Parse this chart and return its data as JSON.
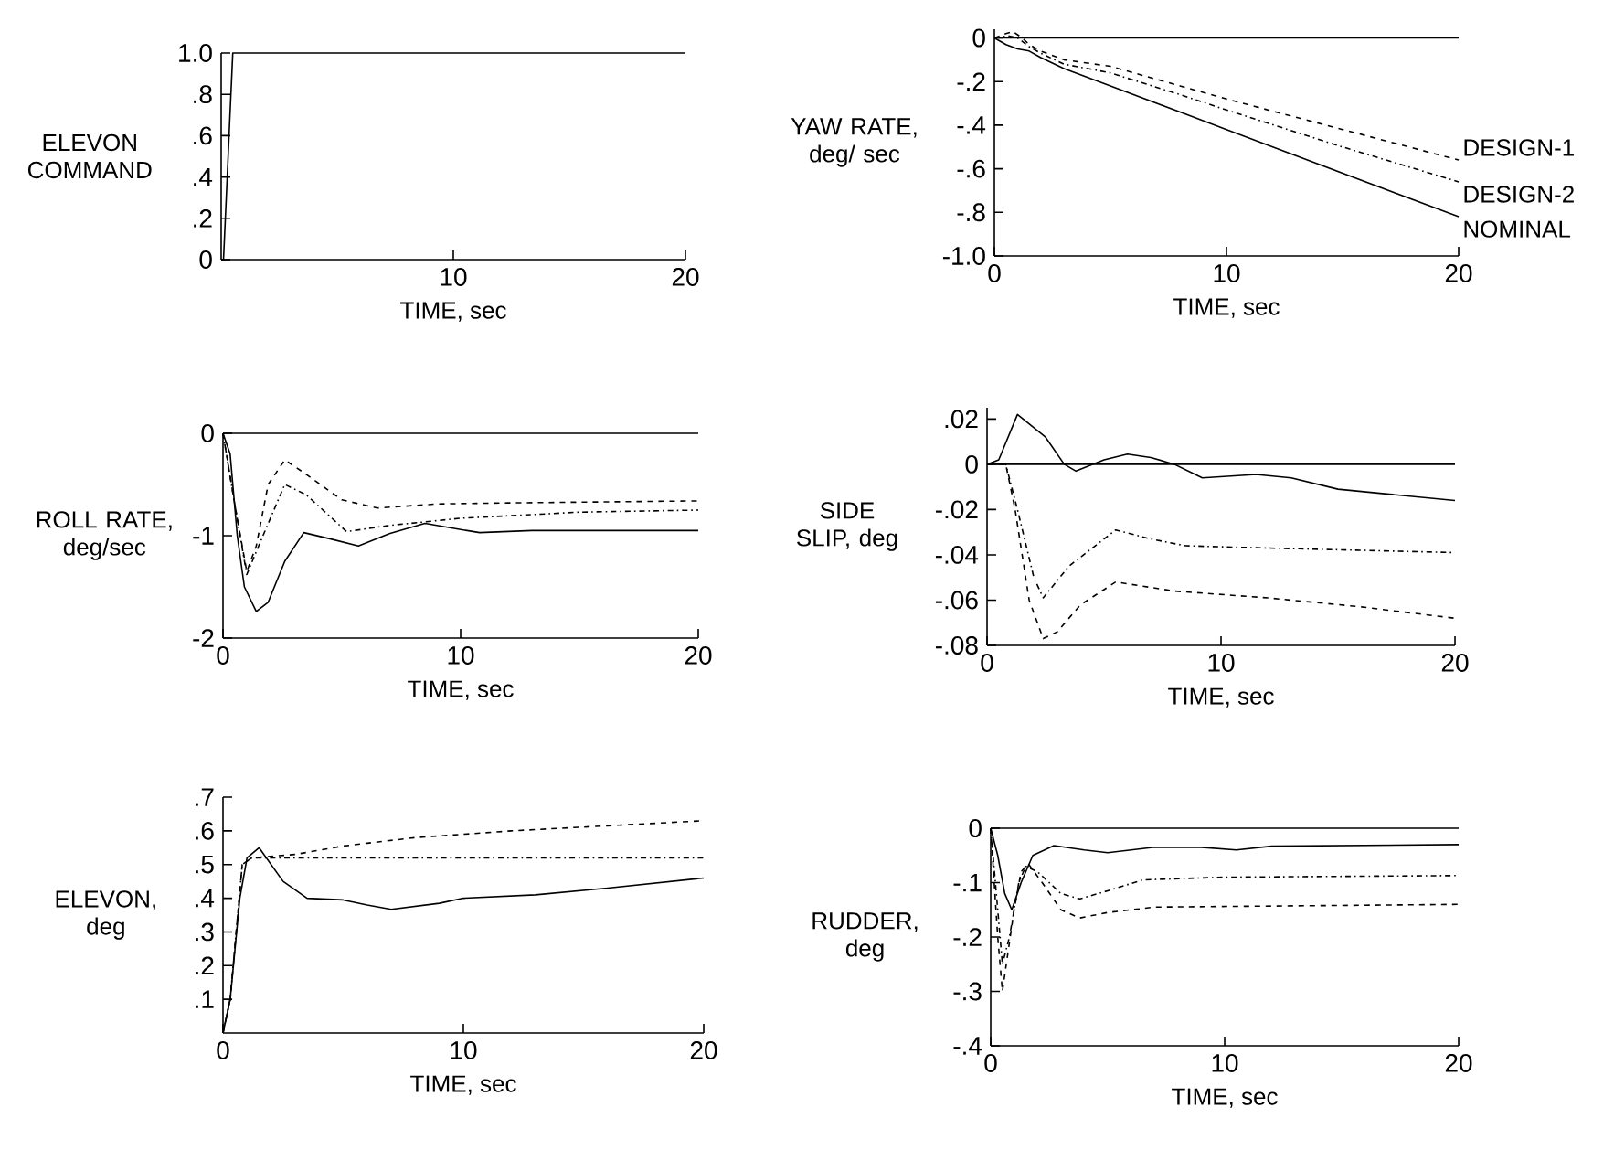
{
  "chart_data": [
    {
      "type": "line",
      "xlabel": "TIME, sec",
      "ylabel": "ELEVON COMMAND",
      "xlim": [
        0,
        20
      ],
      "ylim": [
        0,
        1
      ],
      "xticks": [
        10,
        20
      ],
      "yticks": [
        0,
        {
          "value": 0.2,
          "label": ".2"
        },
        {
          "value": 0.4,
          "label": ".4"
        },
        {
          "value": 0.6,
          "label": ".6"
        },
        {
          "value": 0.8,
          "label": ".8"
        },
        {
          "value": 1,
          "label": "1.0"
        }
      ],
      "series": [
        {
          "color": "#000000",
          "line_style": "solid",
          "x": [
            0,
            0.1,
            0.5,
            20
          ],
          "values": [
            0,
            0,
            1,
            1
          ]
        }
      ]
    },
    {
      "type": "line",
      "xlabel": "TIME, sec",
      "ylabel": "YAW RATE, deg/ sec",
      "xlim": [
        0,
        20
      ],
      "ylim": [
        -1,
        0.04
      ],
      "xticks": [
        0,
        10,
        20
      ],
      "yticks": [
        0,
        {
          "value": -0.2,
          "label": "-.2"
        },
        {
          "value": -0.4,
          "label": "-.4"
        },
        {
          "value": -0.6,
          "label": "-.6"
        },
        {
          "value": -0.8,
          "label": "-.8"
        },
        {
          "value": -1,
          "label": "-1.0"
        }
      ],
      "ref_lines": [
        {
          "axis": "y",
          "value": 0
        }
      ],
      "series": [
        {
          "name": "NOMINAL",
          "color": "#000000",
          "line_style": "solid",
          "x": [
            0,
            0.5,
            1,
            1.5,
            2,
            3,
            5,
            8,
            10,
            15,
            20
          ],
          "values": [
            0,
            -0.03,
            -0.05,
            -0.06,
            -0.09,
            -0.14,
            -0.22,
            -0.34,
            -0.42,
            -0.62,
            -0.82
          ]
        },
        {
          "name": "DESIGN-1",
          "color": "#000000",
          "line_style": "dashed",
          "x": [
            0,
            0.5,
            0.8,
            1.2,
            1.5,
            2,
            3,
            5,
            8,
            10,
            15,
            20
          ],
          "values": [
            0,
            0.02,
            0.03,
            0,
            -0.03,
            -0.06,
            -0.1,
            -0.13,
            -0.22,
            -0.28,
            -0.42,
            -0.56
          ]
        },
        {
          "name": "DESIGN-2",
          "color": "#000000",
          "line_style": "dashdot",
          "x": [
            0,
            0.6,
            1,
            1.5,
            2,
            3,
            5,
            8,
            10,
            15,
            20
          ],
          "values": [
            0,
            0.01,
            0,
            -0.04,
            -0.07,
            -0.12,
            -0.16,
            -0.26,
            -0.33,
            -0.5,
            -0.66
          ]
        }
      ]
    },
    {
      "type": "line",
      "xlabel": "TIME, sec",
      "ylabel": "ROLL RATE, deg/sec",
      "xlim": [
        0,
        20
      ],
      "ylim": [
        -2,
        0
      ],
      "xticks": [
        0,
        10,
        20
      ],
      "yticks": [
        0,
        -1,
        -2
      ],
      "ref_lines": [
        {
          "axis": "y",
          "value": 0
        }
      ],
      "series": [
        {
          "color": "#000000",
          "line_style": "solid",
          "x": [
            0,
            0.3,
            0.6,
            0.9,
            1.4,
            1.9,
            2.6,
            3.4,
            4.5,
            5.7,
            7,
            8.5,
            10,
            10.8,
            13,
            20
          ],
          "values": [
            0,
            -0.2,
            -1.0,
            -1.5,
            -1.74,
            -1.65,
            -1.25,
            -0.97,
            -1.03,
            -1.1,
            -0.98,
            -0.88,
            -0.94,
            -0.97,
            -0.95,
            -0.95
          ]
        },
        {
          "color": "#000000",
          "line_style": "dashed",
          "x": [
            0,
            0.5,
            1,
            1.4,
            1.9,
            2.6,
            3.5,
            5,
            6.5,
            9,
            12,
            20
          ],
          "values": [
            0,
            -0.7,
            -1.35,
            -1.1,
            -0.5,
            -0.26,
            -0.4,
            -0.65,
            -0.73,
            -0.69,
            -0.68,
            -0.66
          ]
        },
        {
          "color": "#000000",
          "line_style": "dashdot",
          "x": [
            0,
            0.5,
            1,
            1.5,
            2.6,
            3.5,
            5.2,
            7,
            10,
            15,
            20
          ],
          "values": [
            0,
            -0.7,
            -1.38,
            -1.1,
            -0.5,
            -0.6,
            -0.96,
            -0.9,
            -0.83,
            -0.77,
            -0.75
          ]
        }
      ]
    },
    {
      "type": "line",
      "xlabel": "TIME, sec",
      "ylabel": "SIDE SLIP, deg",
      "xlim": [
        0,
        20
      ],
      "ylim": [
        -0.08,
        0.025
      ],
      "xticks": [
        0,
        10,
        20
      ],
      "yticks": [
        {
          "value": 0.02,
          "label": ".02"
        },
        0,
        {
          "value": -0.02,
          "label": "-.02"
        },
        {
          "value": -0.04,
          "label": "-.04"
        },
        {
          "value": -0.06,
          "label": "-.06"
        },
        {
          "value": -0.08,
          "label": "-.08"
        }
      ],
      "ref_lines": [
        {
          "axis": "y",
          "value": 0
        }
      ],
      "series": [
        {
          "color": "#000000",
          "line_style": "solid",
          "x": [
            0,
            0.5,
            1.3,
            2.5,
            3.3,
            3.8,
            5,
            6,
            7,
            8,
            9.2,
            11.5,
            13,
            15,
            17,
            20
          ],
          "values": [
            0,
            0.002,
            0.022,
            0.012,
            0,
            -0.003,
            0.002,
            0.0045,
            0.003,
            0,
            -0.006,
            -0.0045,
            -0.006,
            -0.011,
            -0.013,
            -0.016
          ]
        },
        {
          "color": "#000000",
          "line_style": "dashed",
          "x": [
            0,
            0.8,
            1.2,
            1.8,
            2.4,
            3,
            4,
            5.5,
            8,
            12,
            16,
            20
          ],
          "values": [
            0,
            0,
            -0.02,
            -0.06,
            -0.077,
            -0.074,
            -0.062,
            -0.052,
            -0.056,
            -0.059,
            -0.063,
            -0.068
          ]
        },
        {
          "color": "#000000",
          "line_style": "dashdot",
          "x": [
            0,
            0.8,
            1.3,
            2,
            2.4,
            3.5,
            5.5,
            7,
            8.5,
            12,
            20
          ],
          "values": [
            0,
            0,
            -0.02,
            -0.05,
            -0.059,
            -0.045,
            -0.029,
            -0.033,
            -0.036,
            -0.037,
            -0.039
          ]
        }
      ]
    },
    {
      "type": "line",
      "xlabel": "TIME, sec",
      "ylabel": "ELEVON, deg",
      "xlim": [
        0,
        20
      ],
      "ylim": [
        0,
        0.7
      ],
      "xticks": [
        0,
        10,
        20
      ],
      "yticks": [
        {
          "value": 0.1,
          "label": ".1"
        },
        {
          "value": 0.2,
          "label": ".2"
        },
        {
          "value": 0.3,
          "label": ".3"
        },
        {
          "value": 0.4,
          "label": ".4"
        },
        {
          "value": 0.5,
          "label": ".5"
        },
        {
          "value": 0.6,
          "label": ".6"
        },
        {
          "value": 0.7,
          "label": ".7"
        }
      ],
      "series": [
        {
          "color": "#000000",
          "line_style": "solid",
          "x": [
            0,
            0.3,
            0.7,
            1,
            1.5,
            2,
            2.5,
            3.5,
            5,
            6,
            7,
            9,
            10,
            13,
            16,
            20
          ],
          "values": [
            0,
            0.1,
            0.4,
            0.52,
            0.55,
            0.5,
            0.45,
            0.4,
            0.395,
            0.38,
            0.367,
            0.385,
            0.4,
            0.41,
            0.43,
            0.46
          ]
        },
        {
          "color": "#000000",
          "line_style": "dashed",
          "x": [
            0,
            0.3,
            0.8,
            1.2,
            3,
            5,
            8,
            12,
            16,
            20
          ],
          "values": [
            0,
            0.1,
            0.5,
            0.52,
            0.53,
            0.555,
            0.58,
            0.6,
            0.615,
            0.63
          ]
        },
        {
          "color": "#000000",
          "line_style": "dashdot",
          "x": [
            0,
            0.3,
            0.8,
            1.2,
            20
          ],
          "values": [
            0,
            0.1,
            0.5,
            0.52,
            0.52
          ]
        }
      ]
    },
    {
      "type": "line",
      "xlabel": "TIME, sec",
      "ylabel": "RUDDER, deg",
      "xlim": [
        0,
        20
      ],
      "ylim": [
        -0.4,
        0
      ],
      "xticks": [
        0,
        10,
        20
      ],
      "yticks": [
        0,
        {
          "value": -0.1,
          "label": "-.1"
        },
        {
          "value": -0.2,
          "label": "-.2"
        },
        {
          "value": -0.3,
          "label": "-.3"
        },
        {
          "value": -0.4,
          "label": "-.4"
        }
      ],
      "ref_lines": [
        {
          "axis": "y",
          "value": 0
        }
      ],
      "series": [
        {
          "color": "#000000",
          "line_style": "solid",
          "x": [
            0,
            0.3,
            0.6,
            0.9,
            1.3,
            1.8,
            2.7,
            4,
            5,
            7,
            9,
            10.5,
            12,
            20
          ],
          "values": [
            0,
            -0.05,
            -0.12,
            -0.15,
            -0.1,
            -0.05,
            -0.032,
            -0.04,
            -0.045,
            -0.035,
            -0.035,
            -0.04,
            -0.033,
            -0.03
          ]
        },
        {
          "color": "#000000",
          "line_style": "dashed",
          "x": [
            0,
            0.3,
            0.5,
            1,
            1.3,
            1.6,
            2.2,
            3,
            3.8,
            5,
            7,
            20
          ],
          "values": [
            0,
            -0.2,
            -0.3,
            -0.15,
            -0.08,
            -0.065,
            -0.1,
            -0.15,
            -0.165,
            -0.155,
            -0.145,
            -0.14
          ]
        },
        {
          "color": "#000000",
          "line_style": "dashdot",
          "x": [
            0,
            0.3,
            0.5,
            0.8,
            1.2,
            1.5,
            2,
            3,
            3.8,
            5,
            6.5,
            10,
            20
          ],
          "values": [
            0,
            -0.15,
            -0.25,
            -0.2,
            -0.1,
            -0.07,
            -0.08,
            -0.12,
            -0.13,
            -0.115,
            -0.095,
            -0.09,
            -0.087
          ]
        }
      ]
    }
  ]
}
